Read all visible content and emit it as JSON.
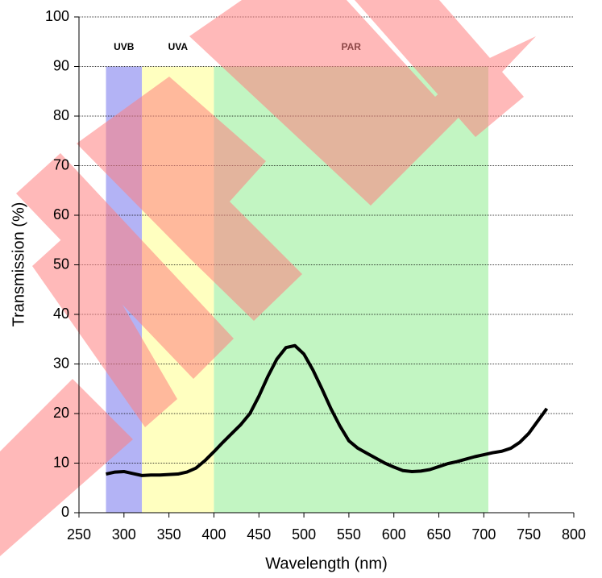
{
  "chart_data": {
    "type": "line",
    "x_label": "Wavelength (nm)",
    "y_label": "Transmission (%)",
    "bands": [
      {
        "name": "UVB",
        "start": 280,
        "end": 320,
        "color": "#b3b3f5"
      },
      {
        "name": "UVA",
        "start": 320,
        "end": 400,
        "color": "#ffffc0"
      },
      {
        "name": "PAR",
        "start": 400,
        "end": 705,
        "color": "#c2f5c2"
      }
    ],
    "x": [
      280,
      290,
      300,
      310,
      320,
      330,
      340,
      350,
      360,
      370,
      380,
      390,
      400,
      410,
      420,
      430,
      440,
      450,
      460,
      470,
      480,
      490,
      500,
      510,
      520,
      530,
      540,
      550,
      560,
      570,
      580,
      590,
      600,
      610,
      620,
      630,
      640,
      650,
      660,
      670,
      680,
      690,
      700,
      710,
      720,
      730,
      740,
      750,
      760,
      770
    ],
    "series": [
      {
        "color": "#000000",
        "values": [
          7.8,
          8.2,
          8.3,
          7.9,
          7.5,
          7.6,
          7.6,
          7.7,
          7.8,
          8.2,
          9.0,
          10.5,
          12.3,
          14.2,
          16.0,
          17.8,
          20.0,
          23.5,
          27.5,
          31.0,
          33.3,
          33.7,
          32.0,
          28.8,
          25.0,
          21.0,
          17.5,
          14.5,
          13.0,
          12.0,
          11.0,
          10.0,
          9.2,
          8.5,
          8.3,
          8.4,
          8.7,
          9.3,
          9.9,
          10.3,
          10.8,
          11.3,
          11.7,
          12.1,
          12.4,
          13.0,
          14.2,
          16.0,
          18.5,
          21.0
        ]
      }
    ],
    "xlim": [
      250,
      800
    ],
    "xticks": [
      250,
      300,
      350,
      400,
      450,
      500,
      550,
      600,
      650,
      700,
      750,
      800
    ],
    "ylim": [
      0,
      100
    ],
    "yticks": [
      0,
      10,
      20,
      30,
      40,
      50,
      60,
      70,
      80,
      90,
      100
    ],
    "grid": true
  }
}
